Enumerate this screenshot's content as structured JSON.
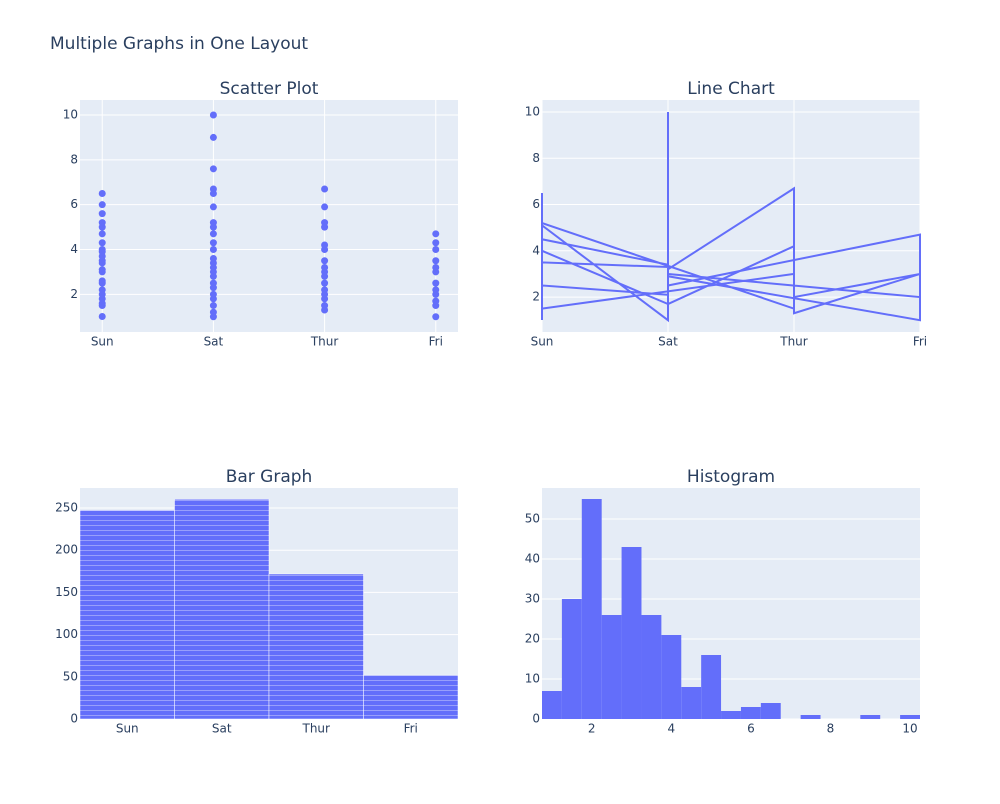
{
  "title": "Multiple Graphs in One Layout",
  "chart_data": [
    {
      "type": "scatter",
      "title": "Scatter Plot",
      "color": "#636efa",
      "categories": [
        "Sun",
        "Sat",
        "Thur",
        "Fri"
      ],
      "x": [
        "Sun",
        "Sun",
        "Sun",
        "Sun",
        "Sun",
        "Sun",
        "Sun",
        "Sun",
        "Sun",
        "Sun",
        "Sun",
        "Sun",
        "Sun",
        "Sun",
        "Sun",
        "Sun",
        "Sun",
        "Sun",
        "Sun",
        "Sun",
        "Sun",
        "Sun",
        "Sat",
        "Sat",
        "Sat",
        "Sat",
        "Sat",
        "Sat",
        "Sat",
        "Sat",
        "Sat",
        "Sat",
        "Sat",
        "Sat",
        "Sat",
        "Sat",
        "Sat",
        "Sat",
        "Sat",
        "Sat",
        "Sat",
        "Sat",
        "Sat",
        "Sat",
        "Sat",
        "Thur",
        "Thur",
        "Thur",
        "Thur",
        "Thur",
        "Thur",
        "Thur",
        "Thur",
        "Thur",
        "Thur",
        "Thur",
        "Thur",
        "Thur",
        "Thur",
        "Thur",
        "Thur",
        "Fri",
        "Fri",
        "Fri",
        "Fri",
        "Fri",
        "Fri",
        "Fri",
        "Fri",
        "Fri",
        "Fri",
        "Fri",
        "Fri"
      ],
      "values": [
        1.01,
        1.5,
        1.6,
        1.8,
        2.0,
        2.2,
        2.5,
        2.6,
        3.0,
        3.1,
        3.4,
        3.5,
        3.7,
        3.9,
        4.0,
        4.3,
        4.7,
        5.0,
        5.2,
        5.6,
        6.0,
        6.5,
        1.0,
        1.2,
        1.5,
        1.8,
        2.0,
        2.3,
        2.5,
        2.8,
        3.0,
        3.2,
        3.4,
        3.6,
        4.0,
        4.3,
        4.7,
        5.0,
        5.2,
        5.9,
        6.5,
        6.7,
        7.6,
        9.0,
        10.0,
        1.3,
        1.5,
        1.8,
        2.0,
        2.2,
        2.5,
        2.8,
        3.0,
        3.2,
        3.5,
        4.0,
        4.2,
        5.0,
        5.2,
        5.9,
        6.7,
        1.0,
        1.5,
        1.7,
        2.0,
        2.2,
        2.5,
        3.0,
        3.2,
        3.5,
        4.0,
        4.3,
        4.7
      ],
      "ylim": [
        0.32,
        10.67
      ],
      "yticks": [
        2,
        4,
        6,
        8,
        10
      ],
      "grid": true
    },
    {
      "type": "line",
      "title": "Line Chart",
      "color": "#636efa",
      "categories": [
        "Sun",
        "Sat",
        "Thur",
        "Fri"
      ],
      "x": [
        "Sun",
        "Sun",
        "Sun",
        "Sun",
        "Sat",
        "Sat",
        "Sat",
        "Sun",
        "Sun",
        "Sat",
        "Sat",
        "Thur",
        "Thur",
        "Fri",
        "Fri",
        "Sat",
        "Sat",
        "Sun",
        "Sun",
        "Thur",
        "Thur",
        "Sat",
        "Sat",
        "Fri",
        "Fri",
        "Sat",
        "Sat",
        "Sun",
        "Sun",
        "Thur",
        "Thur",
        "Fri"
      ],
      "values": [
        1.01,
        6.5,
        1.5,
        3.5,
        3.3,
        10.0,
        1.0,
        5.1,
        2.5,
        2.1,
        1.7,
        4.2,
        1.3,
        3.0,
        1.0,
        2.9,
        3.4,
        4.5,
        5.2,
        1.5,
        6.7,
        3.2,
        2.5,
        4.7,
        2.0,
        3.0,
        1.7,
        4.0,
        1.5,
        3.0,
        2.0,
        3.0
      ],
      "ylim": [
        0.49,
        10.52
      ],
      "yticks": [
        2,
        4,
        6,
        8,
        10
      ],
      "grid": true
    },
    {
      "type": "bar",
      "title": "Bar Graph",
      "color": "#636efa",
      "categories": [
        "Sun",
        "Sat",
        "Thur",
        "Fri"
      ],
      "values": [
        247.39,
        260.4,
        171.83,
        51.96
      ],
      "ylim": [
        0,
        273.7
      ],
      "yticks": [
        0,
        50,
        100,
        150,
        200,
        250
      ],
      "grid": true
    },
    {
      "type": "histogram",
      "title": "Histogram",
      "color": "#636efa",
      "bins": [
        0.75,
        1.25,
        1.75,
        2.25,
        2.75,
        3.25,
        3.75,
        4.25,
        4.75,
        5.25,
        5.75,
        6.25,
        6.75,
        7.25,
        7.75,
        8.25,
        8.75,
        9.25,
        9.75,
        10.25
      ],
      "values": [
        7,
        30,
        55,
        26,
        43,
        26,
        21,
        8,
        16,
        2,
        3,
        4,
        0,
        1,
        0,
        0,
        1,
        0,
        1
      ],
      "xlim": [
        0.75,
        10.25
      ],
      "xticks": [
        2,
        4,
        6,
        8,
        10
      ],
      "ylim": [
        0,
        57.75
      ],
      "yticks": [
        0,
        10,
        20,
        30,
        40,
        50
      ],
      "grid": true
    }
  ]
}
